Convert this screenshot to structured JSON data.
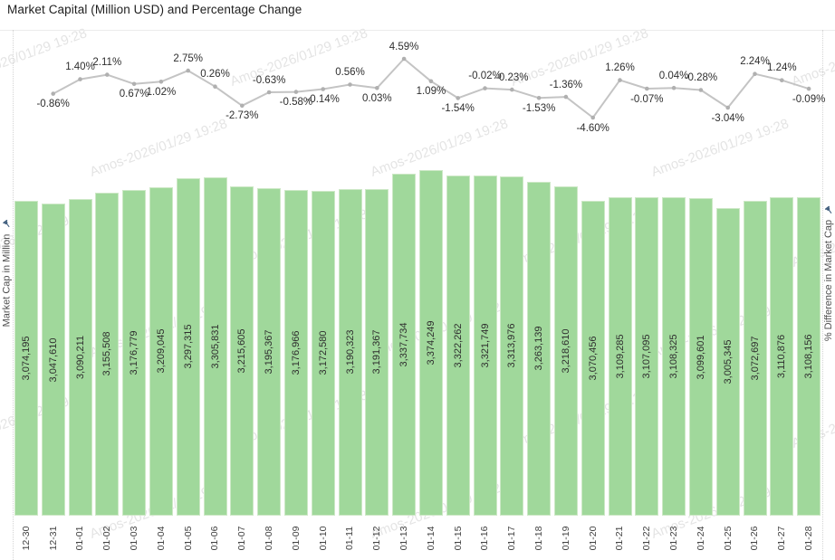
{
  "title": "Market Capital (Million USD) and Percentage Change",
  "axes": {
    "left": {
      "label": "Market Cap in Million",
      "icon": "pin-icon"
    },
    "right": {
      "label": "% Difference in Market Cap",
      "icon": "pin-icon"
    }
  },
  "watermark": {
    "text": "Amos-2026/01/29 19:28"
  },
  "colors": {
    "bar_fill": "#a0d89b",
    "bar_border": "#cde8c6",
    "line": "#c4c4c4",
    "marker": "#b0b0b0",
    "mark_label": "#2e2e2e",
    "tick_label": "#414141",
    "axis_label": "#4f4f4f",
    "pin": "#3f5d7d",
    "watermark": "#e4e4e4"
  },
  "chart_data": [
    {
      "type": "bar",
      "name": "market_cap_bars",
      "title": "Market Capital (Million USD) and Percentage Change",
      "ylabel": "Market Cap in Million",
      "categories": [
        "12-30",
        "12-31",
        "01-01",
        "01-02",
        "01-03",
        "01-04",
        "01-05",
        "01-06",
        "01-07",
        "01-08",
        "01-09",
        "01-10",
        "01-11",
        "01-12",
        "01-13",
        "01-14",
        "01-15",
        "01-16",
        "01-17",
        "01-18",
        "01-19",
        "01-20",
        "01-21",
        "01-22",
        "01-23",
        "01-24",
        "01-25",
        "01-26",
        "01-27",
        "01-28"
      ],
      "values": [
        3074195,
        3047610,
        3090211,
        3155508,
        3176779,
        3209045,
        3297315,
        3305831,
        3215605,
        3195367,
        3176966,
        3172580,
        3190323,
        3191367,
        3337734,
        3374249,
        3322262,
        3321749,
        3313976,
        3263139,
        3218610,
        3070456,
        3109285,
        3107095,
        3108325,
        3099601,
        3005345,
        3072697,
        3110876,
        3108156
      ],
      "value_labels": [
        "3,074,195",
        "3,047,610",
        "3,090,211",
        "3,155,508",
        "3,176,779",
        "3,209,045",
        "3,297,315",
        "3,305,831",
        "3,215,605",
        "3,195,367",
        "3,176,966",
        "3,172,580",
        "3,190,323",
        "3,191,367",
        "3,337,734",
        "3,374,249",
        "3,322,262",
        "3,321,749",
        "3,313,976",
        "3,263,139",
        "3,218,610",
        "3,070,456",
        "3,109,285",
        "3,107,095",
        "3,108,325",
        "3,099,601",
        "3,005,345",
        "3,072,697",
        "3,110,876",
        "3,108,156"
      ],
      "grid": false,
      "legend": false
    },
    {
      "type": "line",
      "name": "pct_change_line",
      "ylabel": "% Difference in Market Cap",
      "categories": [
        "12-31",
        "01-01",
        "01-02",
        "01-03",
        "01-04",
        "01-05",
        "01-06",
        "01-07",
        "01-08",
        "01-09",
        "01-10",
        "01-11",
        "01-12",
        "01-13",
        "01-14",
        "01-15",
        "01-16",
        "01-17",
        "01-18",
        "01-19",
        "01-20",
        "01-21",
        "01-22",
        "01-23",
        "01-24",
        "01-25",
        "01-26",
        "01-27",
        "01-28"
      ],
      "values": [
        -0.86,
        1.4,
        2.11,
        0.67,
        1.02,
        2.75,
        0.26,
        -2.73,
        -0.63,
        -0.58,
        -0.14,
        0.56,
        0.03,
        4.59,
        1.09,
        -1.54,
        -0.02,
        -0.23,
        -1.53,
        -1.36,
        -4.6,
        1.26,
        -0.07,
        0.04,
        -0.28,
        -3.04,
        2.24,
        1.24,
        -0.09
      ],
      "value_labels": [
        "-0.86%",
        "1.40%",
        "2.11%",
        "0.67%",
        "1.02%",
        "2.75%",
        "0.26%",
        "-2.73%",
        "-0.63%",
        "-0.58%",
        "-0.14%",
        "0.56%",
        "0.03%",
        "4.59%",
        "1.09%",
        "-1.54%",
        "-0.02%",
        "-0.23%",
        "-1.53%",
        "-1.36%",
        "-4.60%",
        "1.26%",
        "-0.07%",
        "0.04%",
        "-0.28%",
        "-3.04%",
        "2.24%",
        "1.24%",
        "-0.09%"
      ],
      "label_position": [
        "below",
        "above",
        "above",
        "below",
        "below",
        "above",
        "above",
        "below",
        "above",
        "below",
        "below",
        "above",
        "below",
        "above",
        "below",
        "below",
        "above",
        "above",
        "below",
        "above",
        "below",
        "above",
        "below",
        "above",
        "above",
        "below",
        "above",
        "above",
        "below"
      ],
      "ylim": [
        -6,
        6.5
      ],
      "grid": false,
      "legend": false
    }
  ]
}
